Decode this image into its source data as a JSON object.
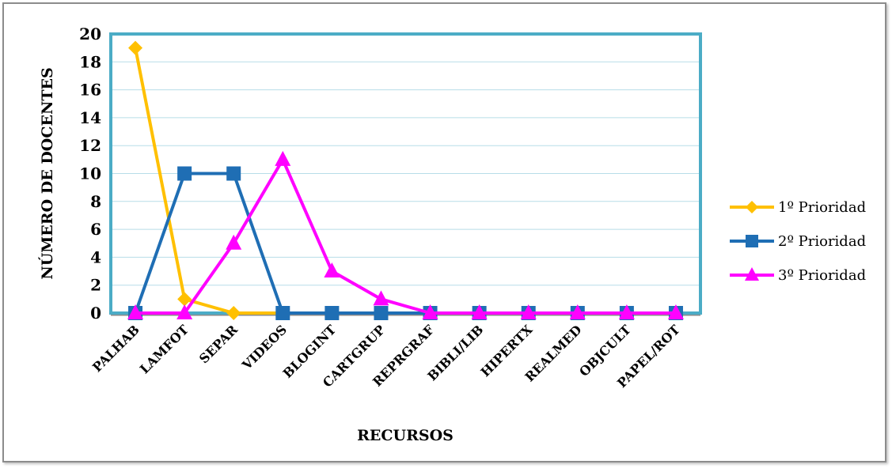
{
  "chart_data": {
    "type": "line",
    "title": "",
    "xlabel": "RECURSOS",
    "ylabel": "NÚMERO DE DOCENTES",
    "ylim": [
      0,
      20
    ],
    "yticks": [
      0,
      2,
      4,
      6,
      8,
      10,
      12,
      14,
      16,
      18,
      20
    ],
    "grid": true,
    "legend_position": "right",
    "categories": [
      "PALHAB",
      "LAMFOT",
      "SEPAR",
      "VIDEOS",
      "BLOGINT",
      "CARTGRUP",
      "REPRGRAF",
      "BIBLI/LIB",
      "HIPERTX",
      "REALMED",
      "OBJCULT",
      "PAPEL/ROT"
    ],
    "series": [
      {
        "name": "1º Prioridad",
        "color": "#FFC000",
        "marker": "diamond",
        "values": [
          19,
          1,
          0,
          0,
          0,
          0,
          0,
          0,
          0,
          0,
          0,
          0
        ]
      },
      {
        "name": "2º Prioridad",
        "color": "#1F6EB4",
        "marker": "square",
        "values": [
          0,
          10,
          10,
          0,
          0,
          0,
          0,
          0,
          0,
          0,
          0,
          0
        ]
      },
      {
        "name": "3º Prioridad",
        "color": "#FF00FF",
        "marker": "triangle",
        "values": [
          0,
          0,
          5,
          11,
          3,
          1,
          0,
          0,
          0,
          0,
          0,
          0
        ]
      }
    ]
  }
}
